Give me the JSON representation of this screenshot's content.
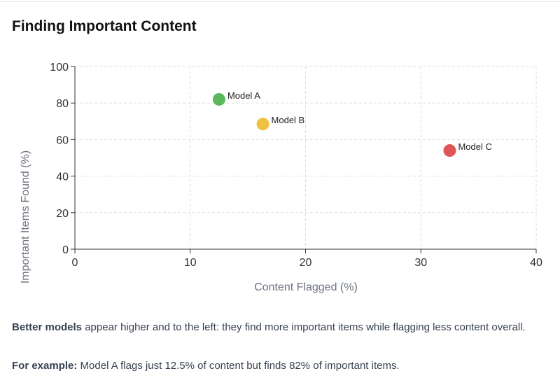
{
  "title": "Finding Important Content",
  "chart_data": {
    "type": "scatter",
    "xlabel": "Content Flagged (%)",
    "ylabel": "Important Items Found (%)",
    "xlim": [
      0,
      40
    ],
    "ylim": [
      0,
      100
    ],
    "xticks": [
      0,
      10,
      20,
      30,
      40
    ],
    "yticks": [
      0,
      20,
      40,
      60,
      80,
      100
    ],
    "grid": true,
    "points": [
      {
        "label": "Model A",
        "x": 12.5,
        "y": 82,
        "color": "#5cb85c"
      },
      {
        "label": "Model B",
        "x": 16.3,
        "y": 68.5,
        "color": "#f0c040"
      },
      {
        "label": "Model C",
        "x": 32.5,
        "y": 54,
        "color": "#e05555"
      }
    ]
  },
  "description": {
    "line1_bold": "Better models",
    "line1_rest": " appear higher and to the left: they find more important items while flagging less content overall.",
    "line2_bold": "For example:",
    "line2_rest": " Model A flags just 12.5% of content but finds 82% of important items."
  }
}
